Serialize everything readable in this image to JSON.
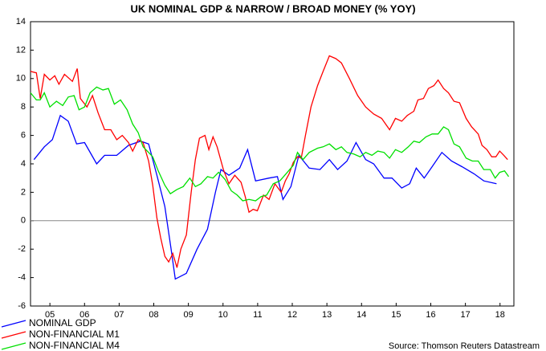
{
  "chart_data": {
    "type": "line",
    "title": "UK NOMINAL GDP & NARROW / BROAD MONEY (% YOY)",
    "source": "Source: Thomson Reuters Datastream",
    "xlim": [
      4.94,
      18.9
    ],
    "xticks": [
      {
        "value": 5.5,
        "label": "05"
      },
      {
        "value": 6.5,
        "label": "06"
      },
      {
        "value": 7.5,
        "label": "07"
      },
      {
        "value": 8.5,
        "label": "08"
      },
      {
        "value": 9.5,
        "label": "09"
      },
      {
        "value": 10.5,
        "label": "10"
      },
      {
        "value": 11.5,
        "label": "11"
      },
      {
        "value": 12.5,
        "label": "12"
      },
      {
        "value": 13.5,
        "label": "13"
      },
      {
        "value": 14.5,
        "label": "14"
      },
      {
        "value": 15.5,
        "label": "15"
      },
      {
        "value": 16.5,
        "label": "16"
      },
      {
        "value": 17.5,
        "label": "17"
      },
      {
        "value": 18.5,
        "label": "18"
      }
    ],
    "ylim": [
      -6,
      14
    ],
    "yticks": [
      -6,
      -4,
      -2,
      0,
      2,
      4,
      6,
      8,
      10,
      12,
      14
    ],
    "grid": false,
    "series": [
      {
        "name": "NOMINAL GDP",
        "color": "#0000ff",
        "x": [
          5.04,
          5.34,
          5.57,
          5.8,
          6.03,
          6.27,
          6.5,
          6.85,
          7.08,
          7.43,
          7.77,
          8.12,
          8.35,
          8.59,
          8.82,
          9.0,
          9.12,
          9.44,
          9.75,
          10.05,
          10.28,
          10.44,
          10.67,
          10.98,
          11.21,
          11.44,
          11.83,
          12.07,
          12.23,
          12.46,
          12.69,
          12.99,
          13.3,
          13.57,
          13.81,
          14.08,
          14.34,
          14.62,
          14.85,
          15.15,
          15.38,
          15.66,
          15.89,
          16.08,
          16.31,
          16.54,
          16.82,
          17.1,
          17.4,
          17.75,
          18.03,
          18.4
        ],
        "values": [
          4.3,
          5.2,
          5.7,
          7.4,
          7.0,
          5.4,
          5.5,
          4.0,
          4.6,
          4.6,
          5.3,
          5.6,
          5.4,
          3.2,
          1.0,
          -2.0,
          -4.1,
          -3.7,
          -2.0,
          -0.6,
          2.0,
          3.6,
          3.2,
          3.7,
          5.0,
          2.8,
          3.0,
          3.1,
          1.5,
          2.4,
          4.6,
          3.7,
          3.6,
          4.3,
          3.6,
          4.2,
          5.5,
          4.3,
          4.0,
          3.0,
          3.0,
          2.3,
          2.6,
          3.7,
          3.0,
          3.8,
          4.8,
          4.2,
          3.8,
          3.3,
          2.8,
          2.6
        ]
      },
      {
        "name": "NON-FINANCIAL M1",
        "color": "#ff0000",
        "x": [
          4.94,
          5.11,
          5.22,
          5.34,
          5.5,
          5.64,
          5.76,
          5.92,
          6.15,
          6.29,
          6.38,
          6.57,
          6.73,
          6.89,
          7.08,
          7.26,
          7.43,
          7.59,
          7.77,
          7.89,
          8.05,
          8.19,
          8.35,
          8.47,
          8.59,
          8.7,
          8.82,
          8.93,
          9.05,
          9.17,
          9.28,
          9.44,
          9.58,
          9.7,
          9.82,
          9.98,
          10.09,
          10.21,
          10.33,
          10.51,
          10.67,
          10.84,
          11.02,
          11.14,
          11.25,
          11.37,
          11.49,
          11.67,
          11.83,
          12.0,
          12.18,
          12.3,
          12.41,
          12.53,
          12.65,
          12.76,
          12.88,
          13.04,
          13.23,
          13.39,
          13.57,
          13.76,
          13.92,
          14.15,
          14.39,
          14.62,
          14.85,
          15.08,
          15.31,
          15.48,
          15.66,
          15.82,
          16.01,
          16.13,
          16.29,
          16.43,
          16.59,
          16.71,
          16.87,
          17.01,
          17.17,
          17.33,
          17.52,
          17.68,
          17.87,
          17.98,
          18.12,
          18.26,
          18.38,
          18.49,
          18.61,
          18.72
        ],
        "values": [
          10.5,
          10.4,
          8.6,
          10.3,
          9.9,
          10.2,
          9.6,
          10.3,
          9.8,
          10.7,
          8.6,
          8.0,
          8.8,
          7.6,
          6.4,
          6.4,
          5.7,
          6.0,
          5.5,
          4.9,
          5.7,
          5.5,
          4.2,
          2.5,
          0.2,
          -1.2,
          -2.5,
          -2.9,
          -2.3,
          -3.3,
          -2.0,
          -1.0,
          2.0,
          4.3,
          5.8,
          6.0,
          5.0,
          5.9,
          5.2,
          3.6,
          2.6,
          3.2,
          2.7,
          1.7,
          0.6,
          0.8,
          0.7,
          1.8,
          1.5,
          2.6,
          2.0,
          2.8,
          3.3,
          4.1,
          4.5,
          4.4,
          6.0,
          8.0,
          9.5,
          10.5,
          11.6,
          11.4,
          11.1,
          10.0,
          8.8,
          8.0,
          7.5,
          7.2,
          6.4,
          7.2,
          7.0,
          7.4,
          7.7,
          8.5,
          8.6,
          9.3,
          9.5,
          9.9,
          9.3,
          9.0,
          8.4,
          8.3,
          7.2,
          6.6,
          6.1,
          5.3,
          5.0,
          4.5,
          4.5,
          4.9,
          4.6,
          4.3
        ]
      },
      {
        "name": "NON-FINANCIAL M4",
        "color": "#00e000",
        "x": [
          4.94,
          5.11,
          5.22,
          5.34,
          5.5,
          5.69,
          5.87,
          6.03,
          6.2,
          6.34,
          6.5,
          6.66,
          6.85,
          7.03,
          7.19,
          7.36,
          7.54,
          7.73,
          7.89,
          8.05,
          8.19,
          8.35,
          8.47,
          8.63,
          8.82,
          8.98,
          9.17,
          9.35,
          9.54,
          9.7,
          9.86,
          10.05,
          10.21,
          10.37,
          10.56,
          10.74,
          10.91,
          11.07,
          11.25,
          11.44,
          11.6,
          11.76,
          11.95,
          12.14,
          12.32,
          12.53,
          12.65,
          12.81,
          12.99,
          13.23,
          13.39,
          13.57,
          13.76,
          13.92,
          14.08,
          14.27,
          14.46,
          14.62,
          14.8,
          14.97,
          15.15,
          15.31,
          15.48,
          15.66,
          15.85,
          16.01,
          16.17,
          16.36,
          16.54,
          16.71,
          16.87,
          17.01,
          17.17,
          17.33,
          17.52,
          17.7,
          17.87,
          18.03,
          18.22,
          18.36,
          18.49,
          18.63,
          18.75
        ],
        "values": [
          9.0,
          8.5,
          8.5,
          9.0,
          8.0,
          8.4,
          8.1,
          8.7,
          8.8,
          7.8,
          8.0,
          9.0,
          9.4,
          9.2,
          9.3,
          8.2,
          8.5,
          7.8,
          6.8,
          6.2,
          5.2,
          4.8,
          4.5,
          3.5,
          2.5,
          1.9,
          2.2,
          2.4,
          3.0,
          2.4,
          2.6,
          3.1,
          3.0,
          3.4,
          2.9,
          2.1,
          1.8,
          1.4,
          1.5,
          1.4,
          1.7,
          1.8,
          2.6,
          2.8,
          3.3,
          3.9,
          4.8,
          4.3,
          4.8,
          5.1,
          5.2,
          5.4,
          5.0,
          5.2,
          4.8,
          4.7,
          4.5,
          4.8,
          4.6,
          4.9,
          4.8,
          4.4,
          5.0,
          4.8,
          5.2,
          5.6,
          5.5,
          5.9,
          6.1,
          6.1,
          6.6,
          6.4,
          5.4,
          5.2,
          4.4,
          4.2,
          4.2,
          3.6,
          3.6,
          3.0,
          3.4,
          3.5,
          3.1
        ]
      }
    ]
  }
}
